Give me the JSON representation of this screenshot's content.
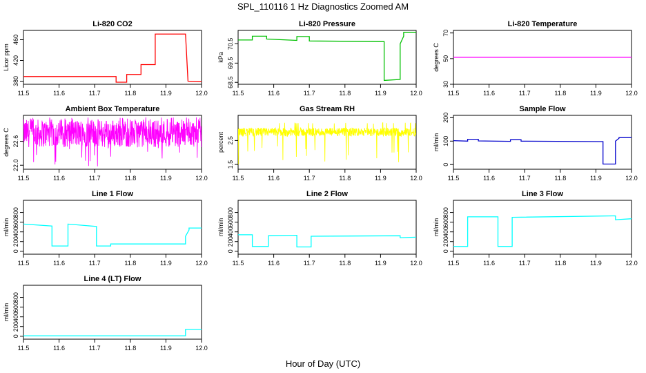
{
  "figure": {
    "title": "SPL_110116  1 Hz Diagnostics Zoomed AM",
    "xlabel": "Hour of Day (UTC)"
  },
  "chart_data": [
    {
      "type": "line",
      "title": "Li-820 CO2",
      "ylabel": "Licor ppm",
      "color": "#ff0000",
      "xlim": [
        11.5,
        12.0
      ],
      "xticks": [
        11.5,
        11.6,
        11.7,
        11.8,
        11.9,
        12.0
      ],
      "xtick_labels": [
        "11.5",
        "11.6",
        "11.7",
        "11.8",
        "11.9",
        "12.0"
      ],
      "ylim": [
        374,
        478
      ],
      "yticks": [
        380,
        420,
        460
      ],
      "ytick_labels": [
        "380",
        "420",
        "460"
      ],
      "series": [
        {
          "x": [
            11.5,
            11.76,
            11.76,
            11.79,
            11.79,
            11.83,
            11.83,
            11.87,
            11.87,
            11.955,
            11.962,
            12.0
          ],
          "y": [
            389,
            389,
            378,
            378,
            393,
            393,
            412,
            412,
            471,
            471,
            380,
            379
          ]
        }
      ]
    },
    {
      "type": "line",
      "title": "Li-820 Pressure",
      "ylabel": "kPa",
      "color": "#00c000",
      "xlim": [
        11.5,
        12.0
      ],
      "xticks": [
        11.5,
        11.6,
        11.7,
        11.8,
        11.9,
        12.0
      ],
      "xtick_labels": [
        "11.5",
        "11.6",
        "11.7",
        "11.8",
        "11.9",
        "12.0"
      ],
      "ylim": [
        68.4,
        71.2
      ],
      "yticks": [
        68.5,
        69.5,
        70.5
      ],
      "ytick_labels": [
        "68.5",
        "69.5",
        "70.5"
      ],
      "series": [
        {
          "x": [
            11.5,
            11.54,
            11.54,
            11.58,
            11.58,
            11.665,
            11.665,
            11.7,
            11.7,
            11.91,
            11.91,
            11.955,
            11.955,
            11.965,
            11.965,
            12.0
          ],
          "y": [
            70.7,
            70.7,
            70.9,
            70.9,
            70.75,
            70.68,
            70.88,
            70.88,
            70.65,
            70.62,
            68.6,
            68.65,
            70.5,
            70.9,
            71.1,
            71.1
          ]
        }
      ]
    },
    {
      "type": "line",
      "title": "Li-820 Temperature",
      "ylabel": "degrees C",
      "color": "#ff00ff",
      "xlim": [
        11.5,
        12.0
      ],
      "xticks": [
        11.5,
        11.6,
        11.7,
        11.8,
        11.9,
        12.0
      ],
      "xtick_labels": [
        "11.5",
        "11.6",
        "11.7",
        "11.8",
        "11.9",
        "12.0"
      ],
      "ylim": [
        30,
        72
      ],
      "yticks": [
        30,
        50,
        70
      ],
      "ytick_labels": [
        "30",
        "50",
        "70"
      ],
      "series": [
        {
          "x": [
            11.5,
            12.0
          ],
          "y": [
            51,
            51
          ]
        }
      ]
    },
    {
      "type": "line",
      "title": "Ambient Box Temperature",
      "ylabel": "degrees C",
      "color": "#ff00ff",
      "xlim": [
        11.5,
        12.0
      ],
      "xticks": [
        11.5,
        11.6,
        11.7,
        11.8,
        11.9,
        12.0
      ],
      "xtick_labels": [
        "11.5",
        "11.6",
        "11.7",
        "11.8",
        "11.9",
        "12.0"
      ],
      "ylim": [
        21.9,
        23.25
      ],
      "yticks": [
        22.0,
        22.6
      ],
      "ytick_labels": [
        "22.0",
        "22.6"
      ],
      "noisy_band": {
        "center": 22.8,
        "spread": 0.35,
        "min": 21.95,
        "max": 23.2
      }
    },
    {
      "type": "line",
      "title": "Gas Stream RH",
      "ylabel": "percent",
      "color": "#ffff00",
      "xlim": [
        11.5,
        12.0
      ],
      "xticks": [
        11.5,
        11.6,
        11.7,
        11.8,
        11.9,
        12.0
      ],
      "xtick_labels": [
        "11.5",
        "11.6",
        "11.7",
        "11.8",
        "11.9",
        "12.0"
      ],
      "ylim": [
        1.3,
        3.55
      ],
      "yticks": [
        1.5,
        2.5
      ],
      "ytick_labels": [
        "1.5",
        "2.5"
      ],
      "noisy_band": {
        "center": 2.85,
        "spread": 0.18,
        "min": 1.45,
        "max": 3.25
      }
    },
    {
      "type": "line",
      "title": "Sample Flow",
      "ylabel": "ml/min",
      "color": "#0000cc",
      "xlim": [
        11.5,
        12.0
      ],
      "xticks": [
        11.5,
        11.6,
        11.7,
        11.8,
        11.9,
        12.0
      ],
      "xtick_labels": [
        "11.5",
        "11.6",
        "11.7",
        "11.8",
        "11.9",
        "12.0"
      ],
      "ylim": [
        -20,
        210
      ],
      "yticks": [
        0,
        100,
        200
      ],
      "ytick_labels": [
        "0",
        "100",
        "200"
      ],
      "series": [
        {
          "x": [
            11.5,
            11.54,
            11.54,
            11.57,
            11.57,
            11.66,
            11.66,
            11.69,
            11.69,
            11.92,
            11.92,
            11.955,
            11.955,
            11.965,
            11.965,
            12.0
          ],
          "y": [
            102,
            100,
            108,
            108,
            101,
            99,
            106,
            106,
            100,
            98,
            2,
            2,
            100,
            112,
            115,
            115
          ]
        }
      ]
    },
    {
      "type": "line",
      "title": "Line 1 Flow",
      "ylabel": "ml/min",
      "color": "#00ffff",
      "xlim": [
        11.5,
        12.0
      ],
      "xticks": [
        11.5,
        11.6,
        11.7,
        11.8,
        11.9,
        12.0
      ],
      "xtick_labels": [
        "11.5",
        "11.6",
        "11.7",
        "11.8",
        "11.9",
        "12.0"
      ],
      "ylim": [
        -60,
        1050
      ],
      "yticks": [
        0,
        200,
        400,
        600,
        800
      ],
      "ytick_labels": [
        "0",
        "200",
        "400",
        "600",
        "800"
      ],
      "series": [
        {
          "x": [
            11.5,
            11.58,
            11.58,
            11.625,
            11.625,
            11.705,
            11.705,
            11.745,
            11.745,
            11.955,
            11.955,
            11.965,
            11.965,
            12.0
          ],
          "y": [
            560,
            520,
            110,
            110,
            560,
            510,
            110,
            110,
            150,
            150,
            310,
            440,
            480,
            480
          ]
        }
      ]
    },
    {
      "type": "line",
      "title": "Line 2 Flow",
      "ylabel": "ml/min",
      "color": "#00ffff",
      "xlim": [
        11.5,
        12.0
      ],
      "xticks": [
        11.5,
        11.6,
        11.7,
        11.8,
        11.9,
        12.0
      ],
      "xtick_labels": [
        "11.5",
        "11.6",
        "11.7",
        "11.8",
        "11.9",
        "12.0"
      ],
      "ylim": [
        -60,
        1050
      ],
      "yticks": [
        0,
        200,
        400,
        600,
        800
      ],
      "ytick_labels": [
        "0",
        "200",
        "400",
        "600",
        "800"
      ],
      "series": [
        {
          "x": [
            11.5,
            11.54,
            11.54,
            11.585,
            11.585,
            11.665,
            11.665,
            11.705,
            11.705,
            11.955,
            11.955,
            12.0
          ],
          "y": [
            340,
            340,
            100,
            100,
            320,
            330,
            90,
            90,
            310,
            320,
            280,
            290
          ]
        }
      ]
    },
    {
      "type": "line",
      "title": "Line 3 Flow",
      "ylabel": "ml/min",
      "color": "#00ffff",
      "xlim": [
        11.5,
        12.0
      ],
      "xticks": [
        11.5,
        11.6,
        11.7,
        11.8,
        11.9,
        12.0
      ],
      "xtick_labels": [
        "11.5",
        "11.6",
        "11.7",
        "11.8",
        "11.9",
        "12.0"
      ],
      "ylim": [
        -60,
        1050
      ],
      "yticks": [
        0,
        200,
        400,
        600,
        800
      ],
      "ytick_labels": [
        "0",
        "200",
        "400",
        "600",
        "800"
      ],
      "series": [
        {
          "x": [
            11.5,
            11.54,
            11.54,
            11.625,
            11.625,
            11.665,
            11.665,
            11.955,
            11.955,
            12.0
          ],
          "y": [
            100,
            100,
            710,
            710,
            100,
            100,
            700,
            730,
            650,
            670
          ]
        }
      ]
    },
    {
      "type": "line",
      "title": "Line 4 (LT) Flow",
      "ylabel": "ml/min",
      "color": "#00ffff",
      "xlim": [
        11.5,
        12.0
      ],
      "xticks": [
        11.5,
        11.6,
        11.7,
        11.8,
        11.9,
        12.0
      ],
      "xtick_labels": [
        "11.5",
        "11.6",
        "11.7",
        "11.8",
        "11.9",
        "12.0"
      ],
      "ylim": [
        -60,
        1050
      ],
      "yticks": [
        0,
        200,
        400,
        600,
        800
      ],
      "ytick_labels": [
        "0",
        "200",
        "400",
        "600",
        "800"
      ],
      "series": [
        {
          "x": [
            11.5,
            11.955,
            11.955,
            12.0
          ],
          "y": [
            10,
            10,
            140,
            140
          ]
        }
      ]
    }
  ]
}
